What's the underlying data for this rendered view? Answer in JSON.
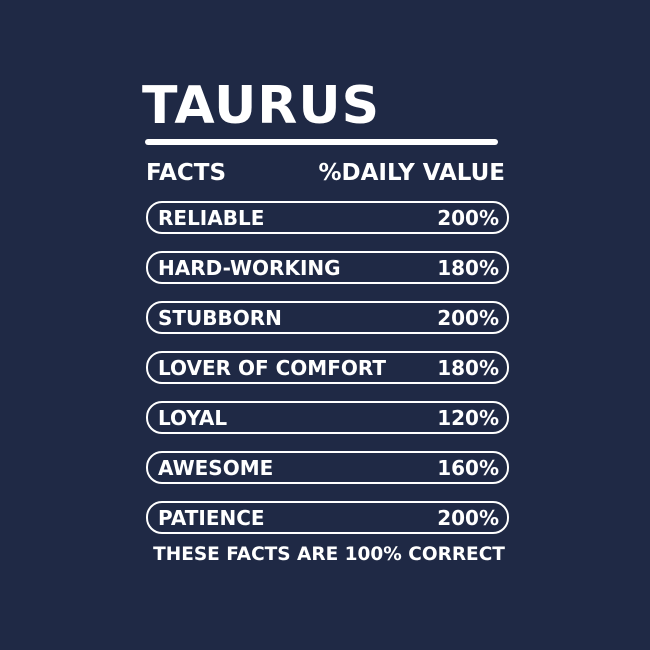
{
  "title": "TAURUS",
  "header": {
    "left": "FACTS",
    "right": "%DAILY VALUE"
  },
  "facts": [
    {
      "label": "RELIABLE",
      "value": "200%"
    },
    {
      "label": "HARD-WORKING",
      "value": "180%"
    },
    {
      "label": "STUBBORN",
      "value": "200%"
    },
    {
      "label": "LOVER OF COMFORT",
      "value": "180%"
    },
    {
      "label": "LOYAL",
      "value": "120%"
    },
    {
      "label": "AWESOME",
      "value": "160%"
    },
    {
      "label": "PATIENCE",
      "value": "200%"
    }
  ],
  "footer": "THESE FACTS ARE 100% CORRECT",
  "colors": {
    "background": "#1f2945",
    "text": "#ffffff"
  }
}
